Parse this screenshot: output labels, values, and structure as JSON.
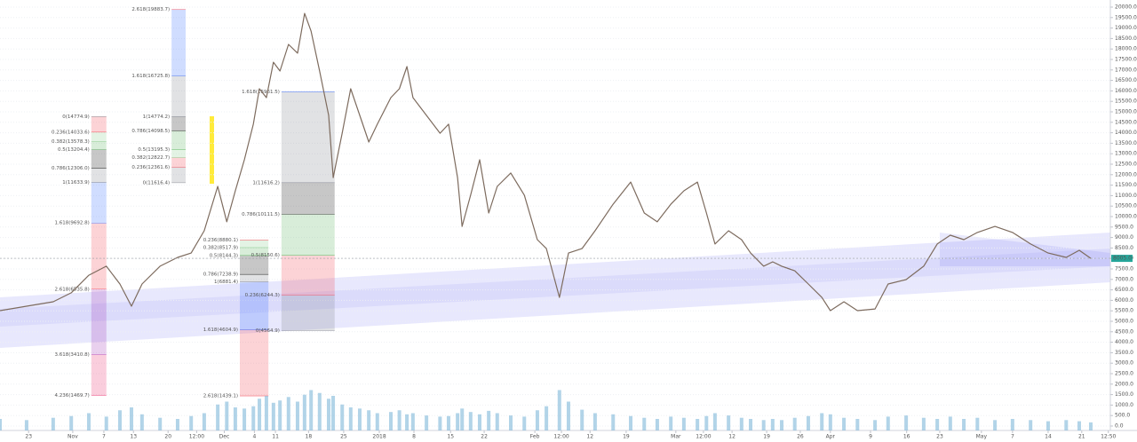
{
  "chart_data": {
    "type": "line",
    "color": "#7d6b5e",
    "grid": true,
    "xlim": [
      -5.7,
      215.6
    ],
    "ylim": [
      -212,
      20339
    ],
    "xticks": [
      {
        "value": 0,
        "label": "23"
      },
      {
        "value": 8.8,
        "label": "Nov"
      },
      {
        "value": 15,
        "label": "7"
      },
      {
        "value": 20.9,
        "label": "13"
      },
      {
        "value": 27.8,
        "label": "20"
      },
      {
        "value": 33.5,
        "label": "12:00"
      },
      {
        "value": 39,
        "label": "Dec"
      },
      {
        "value": 45,
        "label": "4"
      },
      {
        "value": 49.2,
        "label": "11"
      },
      {
        "value": 55.8,
        "label": "18"
      },
      {
        "value": 62.8,
        "label": "25"
      },
      {
        "value": 69.9,
        "label": "2018"
      },
      {
        "value": 76.8,
        "label": "8"
      },
      {
        "value": 84.1,
        "label": "15"
      },
      {
        "value": 90.8,
        "label": "22"
      },
      {
        "value": 100.9,
        "label": "Feb"
      },
      {
        "value": 106.2,
        "label": "12:00"
      },
      {
        "value": 111.9,
        "label": "12"
      },
      {
        "value": 119.1,
        "label": "19"
      },
      {
        "value": 129,
        "label": "Mar"
      },
      {
        "value": 134.5,
        "label": "12:00"
      },
      {
        "value": 140.2,
        "label": "12"
      },
      {
        "value": 147.1,
        "label": "19"
      },
      {
        "value": 153.8,
        "label": "26"
      },
      {
        "value": 159.8,
        "label": "Apr"
      },
      {
        "value": 167.8,
        "label": "9"
      },
      {
        "value": 175,
        "label": "16"
      },
      {
        "value": 181.6,
        "label": "23"
      },
      {
        "value": 189.9,
        "label": "May"
      },
      {
        "value": 196.1,
        "label": "7"
      },
      {
        "value": 203.2,
        "label": "14"
      },
      {
        "value": 209.9,
        "label": "21"
      },
      {
        "value": 215.2,
        "label": "12:50"
      }
    ],
    "yticks": [
      {
        "value": 0,
        "label": "0.0"
      },
      {
        "value": 500,
        "label": "500.0"
      },
      {
        "value": 1000,
        "label": "1000.0"
      },
      {
        "value": 1500,
        "label": "1500.0"
      },
      {
        "value": 2000,
        "label": "2000.0"
      },
      {
        "value": 2500,
        "label": "2500.0"
      },
      {
        "value": 3000,
        "label": "3000.0"
      },
      {
        "value": 3500,
        "label": "3500.0"
      },
      {
        "value": 4000,
        "label": "4000.0"
      },
      {
        "value": 4500,
        "label": "4500.0"
      },
      {
        "value": 5000,
        "label": "5000.0"
      },
      {
        "value": 5500,
        "label": "5500.0"
      },
      {
        "value": 6000,
        "label": "6000.0"
      },
      {
        "value": 6500,
        "label": "6500.0"
      },
      {
        "value": 7000,
        "label": "7000.0"
      },
      {
        "value": 7500,
        "label": "7500.0"
      },
      {
        "value": 8000,
        "label": "8000.0"
      },
      {
        "value": 8500,
        "label": "8500.0"
      },
      {
        "value": 9000,
        "label": "9000.0"
      },
      {
        "value": 9500,
        "label": "9500.0"
      },
      {
        "value": 10000,
        "label": "10000.0"
      },
      {
        "value": 10500,
        "label": "10500.0"
      },
      {
        "value": 11000,
        "label": "11000.0"
      },
      {
        "value": 11500,
        "label": "11500.0"
      },
      {
        "value": 12000,
        "label": "12000.0"
      },
      {
        "value": 12500,
        "label": "12500.0"
      },
      {
        "value": 13000,
        "label": "13000.0"
      },
      {
        "value": 13500,
        "label": "13500.0"
      },
      {
        "value": 14000,
        "label": "14000.0"
      },
      {
        "value": 14500,
        "label": "14500.0"
      },
      {
        "value": 15000,
        "label": "15000.0"
      },
      {
        "value": 15500,
        "label": "15500.0"
      },
      {
        "value": 16000,
        "label": "16000.0"
      },
      {
        "value": 16500,
        "label": "16500.0"
      },
      {
        "value": 17000,
        "label": "17000.0"
      },
      {
        "value": 17500,
        "label": "17500.0"
      },
      {
        "value": 18000,
        "label": "18000.0"
      },
      {
        "value": 18500,
        "label": "18500.0"
      },
      {
        "value": 19000,
        "label": "19000.0"
      },
      {
        "value": 19500,
        "label": "19500.0"
      },
      {
        "value": 20000,
        "label": "20000.0"
      }
    ],
    "x": [
      -5.7,
      -0.4,
      4.9,
      8.5,
      12.0,
      15.5,
      18.2,
      20.5,
      22.6,
      26.2,
      29.7,
      32.4,
      35.0,
      37.7,
      39.5,
      41.2,
      43.0,
      44.8,
      46.0,
      47.4,
      48.8,
      50.1,
      51.8,
      53.6,
      55.0,
      56.3,
      58.0,
      59.8,
      60.7,
      62.5,
      64.2,
      66.0,
      67.8,
      69.5,
      72.2,
      73.9,
      75.4,
      76.6,
      79.3,
      82.0,
      83.7,
      85.5,
      86.4,
      88.1,
      89.9,
      91.7,
      93.4,
      96.1,
      98.8,
      101.4,
      103.2,
      105.8,
      107.6,
      110.3,
      112.9,
      116.5,
      120.0,
      122.7,
      125.3,
      128.0,
      130.6,
      133.3,
      135.1,
      136.8,
      139.5,
      142.1,
      143.9,
      146.5,
      148.3,
      150.1,
      152.7,
      155.4,
      158.1,
      159.8,
      162.5,
      165.2,
      168.7,
      171.3,
      174.9,
      178.4,
      181.1,
      183.7,
      186.4,
      189.1,
      192.6,
      196.1,
      199.7,
      203.2,
      206.8,
      209.4,
      211.7
    ],
    "values": [
      5510,
      5720,
      5930,
      6360,
      7200,
      7630,
      6780,
      5720,
      6780,
      7630,
      8050,
      8260,
      9320,
      11440,
      9750,
      11230,
      12710,
      14410,
      16100,
      15680,
      17370,
      16950,
      18220,
      17800,
      19700,
      18850,
      16950,
      14830,
      11860,
      13980,
      16100,
      14830,
      13560,
      14410,
      15680,
      16100,
      17160,
      15680,
      14830,
      13980,
      14410,
      11860,
      9530,
      11020,
      12710,
      10170,
      11440,
      12080,
      11020,
      8900,
      8470,
      6140,
      8260,
      8470,
      9320,
      10590,
      11650,
      10170,
      9750,
      10590,
      11230,
      11650,
      10170,
      8690,
      9320,
      8900,
      8260,
      7630,
      7840,
      7630,
      7410,
      6780,
      6140,
      5510,
      5930,
      5510,
      5590,
      6780,
      6990,
      7630,
      8690,
      9110,
      8900,
      9240,
      9530,
      9240,
      8690,
      8260,
      8050,
      8390,
      8005
    ],
    "volume": {
      "color": "#7fb8d8",
      "vlim": [
        0,
        100
      ],
      "values": [
        20,
        18,
        22,
        25,
        30,
        24,
        35,
        40,
        28,
        22,
        20,
        25,
        30,
        45,
        50,
        40,
        38,
        42,
        55,
        60,
        48,
        52,
        58,
        50,
        62,
        70,
        65,
        55,
        60,
        45,
        40,
        38,
        35,
        30,
        32,
        35,
        28,
        30,
        26,
        24,
        25,
        30,
        38,
        32,
        28,
        34,
        30,
        26,
        24,
        35,
        42,
        70,
        50,
        36,
        30,
        28,
        25,
        22,
        20,
        24,
        22,
        20,
        25,
        30,
        26,
        22,
        20,
        18,
        20,
        18,
        22,
        25,
        30,
        28,
        22,
        20,
        18,
        24,
        26,
        22,
        20,
        24,
        20,
        22,
        18,
        20,
        18,
        16,
        18,
        16,
        14
      ]
    },
    "last_price": {
      "value": 8005,
      "label": "8005.0"
    },
    "fib_tools": [
      {
        "x": [
          12.5,
          15.5
        ],
        "levels": [
          {
            "label": "0(14774.9)",
            "value": 14774.9,
            "color": "#787b86"
          },
          {
            "label": "0.236(14033.6)",
            "value": 14033.6,
            "color": "#f23645"
          },
          {
            "label": "0.382(13578.3)",
            "value": 13578.3,
            "color": "#81c784"
          },
          {
            "label": "0.5(13204.4)",
            "value": 13204.4,
            "color": "#4caf50"
          },
          {
            "label": "0.786(12306.0)",
            "value": 12306.0,
            "color": "#000000"
          },
          {
            "label": "1(11633.9)",
            "value": 11633.9,
            "color": "#787b86"
          },
          {
            "label": "1.618(9692.8)",
            "value": 9692.8,
            "color": "#2962ff"
          },
          {
            "label": "2.618(6535.8)",
            "value": 6535.8,
            "color": "#f23645"
          },
          {
            "label": "3.618(3410.8)",
            "value": 3410.8,
            "color": "#9c27b0"
          },
          {
            "label": "4.236(1469.7)",
            "value": 1469.7,
            "color": "#e91e63"
          }
        ]
      },
      {
        "x": [
          28.5,
          31.3
        ],
        "levels": [
          {
            "label": "2.618(19883.7)",
            "value": 19883.7,
            "color": "#f23645"
          },
          {
            "label": "1.618(16725.8)",
            "value": 16725.8,
            "color": "#2962ff"
          },
          {
            "label": "1(14774.2)",
            "value": 14774.2,
            "color": "#787b86"
          },
          {
            "label": "0.786(14098.5)",
            "value": 14098.5,
            "color": "#000000"
          },
          {
            "label": "0.5(13195.3)",
            "value": 13195.3,
            "color": "#4caf50"
          },
          {
            "label": "0.382(12822.7)",
            "value": 12822.7,
            "color": "#81c784"
          },
          {
            "label": "0.236(12361.6)",
            "value": 12361.6,
            "color": "#f23645"
          },
          {
            "label": "0(11616.4)",
            "value": 11616.4,
            "color": "#787b86"
          }
        ]
      },
      {
        "x": [
          42.1,
          47.8
        ],
        "levels": [
          {
            "label": "0.236(8880.1)",
            "value": 8880.1,
            "color": "#f23645"
          },
          {
            "label": "0.382(8517.9)",
            "value": 8517.9,
            "color": "#81c784"
          },
          {
            "label": "0.5(8144.3)",
            "value": 8144.3,
            "color": "#4caf50"
          },
          {
            "label": "0.786(7238.9)",
            "value": 7238.9,
            "color": "#000000"
          },
          {
            "label": "1(6881.4)",
            "value": 6881.4,
            "color": "#787b86"
          },
          {
            "label": "1.618(4604.9)",
            "value": 4604.9,
            "color": "#2962ff"
          },
          {
            "label": "2.618(1439.1)",
            "value": 1439.1,
            "color": "#f23645"
          }
        ]
      },
      {
        "x": [
          50.4,
          61.0
        ],
        "levels": [
          {
            "label": "1.618(15961.5)",
            "value": 15961.5,
            "color": "#2962ff"
          },
          {
            "label": "1(11616.2)",
            "value": 11616.2,
            "color": "#787b86"
          },
          {
            "label": "0.786(10111.5)",
            "value": 10111.5,
            "color": "#000000"
          },
          {
            "label": "0.5(8150.6)",
            "value": 8150.6,
            "color": "#4caf50"
          },
          {
            "label": "0.236(6244.3)",
            "value": 6244.3,
            "color": "#f23645"
          },
          {
            "label": "0(4564.9)",
            "value": 4564.9,
            "color": "#787b86"
          }
        ]
      }
    ]
  }
}
